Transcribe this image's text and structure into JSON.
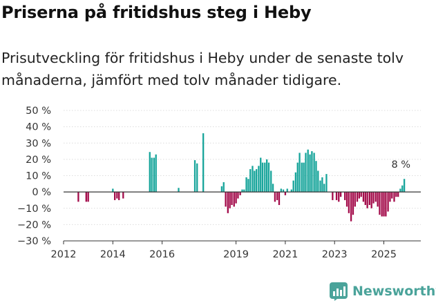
{
  "header": {
    "title": "Priserna på fritidshus steg i Heby",
    "subtitle": "Prisutveckling för fritidshus i Heby under de senaste tolv månaderna, jämfört med tolv månader tidigare."
  },
  "brand": {
    "name": "Newsworthy"
  },
  "colors": {
    "positive": "#18a59b",
    "negative": "#a30b4a",
    "axis": "#333333",
    "grid": "#dcdcdc",
    "brand": "#4aa39a"
  },
  "chart_data": {
    "type": "bar",
    "title": "Priserna på fritidshus steg i Heby",
    "xlabel": "",
    "ylabel": "",
    "ylim": [
      -30,
      50
    ],
    "yticks": [
      -30,
      -20,
      -10,
      0,
      10,
      20,
      30,
      40,
      50
    ],
    "ytick_labels": [
      "−30 %",
      "−20 %",
      "−10 %",
      "0 %",
      "10 %",
      "20 %",
      "30 %",
      "40 %",
      "50 %"
    ],
    "xlim": [
      2012,
      2026.5
    ],
    "xticks": [
      2012,
      2014,
      2016,
      2019,
      2021,
      2023,
      2025
    ],
    "xtick_labels": [
      "2012",
      "2014",
      "2016",
      "2019",
      "2021",
      "2023",
      "2025"
    ],
    "annotation": {
      "text": "8 %",
      "x": 2025.75,
      "y": 8
    },
    "series": [
      {
        "name": "Prisutveckling",
        "points": [
          {
            "x": 2012.6,
            "y": -6
          },
          {
            "x": 2012.92,
            "y": -6
          },
          {
            "x": 2013.0,
            "y": -6
          },
          {
            "x": 2014.0,
            "y": 2
          },
          {
            "x": 2014.08,
            "y": -5
          },
          {
            "x": 2014.17,
            "y": -4
          },
          {
            "x": 2014.25,
            "y": -5
          },
          {
            "x": 2014.42,
            "y": -4
          },
          {
            "x": 2015.5,
            "y": 24.5
          },
          {
            "x": 2015.58,
            "y": 21
          },
          {
            "x": 2015.67,
            "y": 21
          },
          {
            "x": 2015.75,
            "y": 23
          },
          {
            "x": 2016.67,
            "y": 2.5
          },
          {
            "x": 2017.33,
            "y": 19.5
          },
          {
            "x": 2017.42,
            "y": 17.5
          },
          {
            "x": 2017.67,
            "y": 36
          },
          {
            "x": 2018.42,
            "y": 3.5
          },
          {
            "x": 2018.5,
            "y": 6
          },
          {
            "x": 2018.58,
            "y": -9
          },
          {
            "x": 2018.67,
            "y": -13
          },
          {
            "x": 2018.75,
            "y": -10
          },
          {
            "x": 2018.83,
            "y": -8
          },
          {
            "x": 2018.92,
            "y": -9
          },
          {
            "x": 2019.0,
            "y": -7
          },
          {
            "x": 2019.08,
            "y": -4
          },
          {
            "x": 2019.17,
            "y": -2
          },
          {
            "x": 2019.25,
            "y": 1.5
          },
          {
            "x": 2019.33,
            "y": 1.5
          },
          {
            "x": 2019.42,
            "y": 9
          },
          {
            "x": 2019.5,
            "y": 8
          },
          {
            "x": 2019.58,
            "y": 14
          },
          {
            "x": 2019.67,
            "y": 16
          },
          {
            "x": 2019.75,
            "y": 13
          },
          {
            "x": 2019.83,
            "y": 14
          },
          {
            "x": 2019.92,
            "y": 16
          },
          {
            "x": 2020.0,
            "y": 21
          },
          {
            "x": 2020.08,
            "y": 18
          },
          {
            "x": 2020.17,
            "y": 18
          },
          {
            "x": 2020.25,
            "y": 20
          },
          {
            "x": 2020.33,
            "y": 18
          },
          {
            "x": 2020.42,
            "y": 13
          },
          {
            "x": 2020.5,
            "y": 5
          },
          {
            "x": 2020.58,
            "y": -6
          },
          {
            "x": 2020.67,
            "y": -5
          },
          {
            "x": 2020.75,
            "y": -8
          },
          {
            "x": 2020.83,
            "y": 2
          },
          {
            "x": 2020.92,
            "y": 1.5
          },
          {
            "x": 2021.0,
            "y": -2
          },
          {
            "x": 2021.08,
            "y": 2
          },
          {
            "x": 2021.25,
            "y": 1.5
          },
          {
            "x": 2021.33,
            "y": 7
          },
          {
            "x": 2021.42,
            "y": 12
          },
          {
            "x": 2021.5,
            "y": 18
          },
          {
            "x": 2021.58,
            "y": 24
          },
          {
            "x": 2021.67,
            "y": 18
          },
          {
            "x": 2021.75,
            "y": 18
          },
          {
            "x": 2021.83,
            "y": 24
          },
          {
            "x": 2021.92,
            "y": 26
          },
          {
            "x": 2022.0,
            "y": 23
          },
          {
            "x": 2022.08,
            "y": 25
          },
          {
            "x": 2022.17,
            "y": 24
          },
          {
            "x": 2022.25,
            "y": 19
          },
          {
            "x": 2022.33,
            "y": 13
          },
          {
            "x": 2022.42,
            "y": 7
          },
          {
            "x": 2022.5,
            "y": 9
          },
          {
            "x": 2022.58,
            "y": 5
          },
          {
            "x": 2022.67,
            "y": 11
          },
          {
            "x": 2022.92,
            "y": -5
          },
          {
            "x": 2023.08,
            "y": -5
          },
          {
            "x": 2023.17,
            "y": -6
          },
          {
            "x": 2023.25,
            "y": -3
          },
          {
            "x": 2023.42,
            "y": -5
          },
          {
            "x": 2023.5,
            "y": -9
          },
          {
            "x": 2023.58,
            "y": -13
          },
          {
            "x": 2023.67,
            "y": -18
          },
          {
            "x": 2023.75,
            "y": -14
          },
          {
            "x": 2023.83,
            "y": -9
          },
          {
            "x": 2023.92,
            "y": -6
          },
          {
            "x": 2024.0,
            "y": -4
          },
          {
            "x": 2024.08,
            "y": -3
          },
          {
            "x": 2024.17,
            "y": -6
          },
          {
            "x": 2024.25,
            "y": -8
          },
          {
            "x": 2024.33,
            "y": -10
          },
          {
            "x": 2024.42,
            "y": -8
          },
          {
            "x": 2024.5,
            "y": -10
          },
          {
            "x": 2024.58,
            "y": -7
          },
          {
            "x": 2024.67,
            "y": -6
          },
          {
            "x": 2024.75,
            "y": -9
          },
          {
            "x": 2024.83,
            "y": -14
          },
          {
            "x": 2024.92,
            "y": -15
          },
          {
            "x": 2025.0,
            "y": -15
          },
          {
            "x": 2025.08,
            "y": -15
          },
          {
            "x": 2025.17,
            "y": -12
          },
          {
            "x": 2025.25,
            "y": -6
          },
          {
            "x": 2025.33,
            "y": -4
          },
          {
            "x": 2025.42,
            "y": -6
          },
          {
            "x": 2025.5,
            "y": -3
          },
          {
            "x": 2025.58,
            "y": -3
          },
          {
            "x": 2025.67,
            "y": 2
          },
          {
            "x": 2025.75,
            "y": 4
          },
          {
            "x": 2025.83,
            "y": 8
          }
        ]
      }
    ]
  }
}
